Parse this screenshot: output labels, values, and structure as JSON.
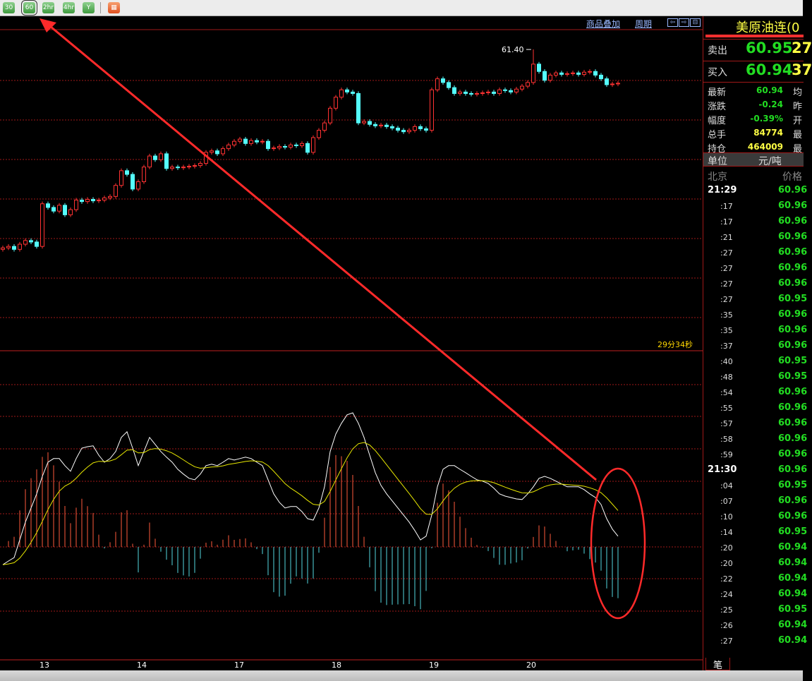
{
  "toolbar": {
    "buttons": [
      "30",
      "60",
      "2hr",
      "4hr",
      "Y"
    ],
    "selected": "60",
    "grid_icon": "grid-icon"
  },
  "header": {
    "overlay_link": "商品叠加",
    "period_link": "周期",
    "nav_icons": [
      "scroll-left-icon",
      "scroll-right-icon",
      "panel-toggle-icon"
    ]
  },
  "countdown": "29分34秒",
  "chart_data": [
    {
      "type": "candlestick",
      "high_label": "61.40",
      "high_value": 61.4,
      "x_ticks": [
        "13",
        "14",
        "17",
        "18",
        "19",
        "20"
      ],
      "colors": {
        "up": "#ff3232",
        "down": "#54fcfc",
        "grid": "#a01818"
      },
      "closes": [
        58.7,
        58.72,
        58.68,
        58.75,
        58.8,
        58.78,
        58.72,
        59.3,
        59.25,
        59.2,
        59.28,
        59.15,
        59.22,
        59.35,
        59.33,
        59.36,
        59.34,
        59.35,
        59.38,
        59.4,
        59.55,
        59.75,
        59.7,
        59.5,
        59.6,
        59.8,
        59.95,
        59.9,
        59.98,
        59.78,
        59.8,
        59.79,
        59.8,
        59.81,
        59.82,
        59.85,
        60.0,
        60.02,
        59.98,
        60.05,
        60.1,
        60.15,
        60.18,
        60.12,
        60.16,
        60.14,
        60.15,
        60.05,
        60.06,
        60.08,
        60.07,
        60.1,
        60.09,
        60.12,
        60.0,
        60.2,
        60.3,
        60.4,
        60.6,
        60.75,
        60.85,
        60.82,
        60.8,
        60.4,
        60.42,
        60.38,
        60.36,
        60.37,
        60.35,
        60.33,
        60.3,
        60.28,
        60.3,
        60.35,
        60.32,
        60.3,
        60.85,
        61.0,
        60.95,
        60.88,
        60.8,
        60.82,
        60.8,
        60.79,
        60.8,
        60.81,
        60.82,
        60.8,
        60.85,
        60.84,
        60.82,
        60.86,
        60.9,
        60.95,
        61.2,
        61.1,
        60.98,
        61.05,
        61.08,
        61.06,
        61.07,
        61.08,
        61.06,
        61.09,
        61.1,
        61.05,
        61.0,
        60.92,
        60.93,
        60.94
      ]
    },
    {
      "type": "macd",
      "colors": {
        "dif": "#ffffff",
        "dea": "#e8e800",
        "pos": "#ff5a3c",
        "neg": "#54d8e0"
      },
      "dif": [
        -0.063,
        -0.05,
        -0.038,
        0.025,
        0.088,
        0.138,
        0.188,
        0.25,
        0.3,
        0.313,
        0.313,
        0.288,
        0.268,
        0.313,
        0.35,
        0.355,
        0.358,
        0.325,
        0.3,
        0.313,
        0.338,
        0.388,
        0.408,
        0.35,
        0.288,
        0.338,
        0.388,
        0.363,
        0.338,
        0.318,
        0.3,
        0.275,
        0.258,
        0.243,
        0.238,
        0.258,
        0.288,
        0.293,
        0.288,
        0.3,
        0.313,
        0.308,
        0.313,
        0.318,
        0.313,
        0.3,
        0.288,
        0.238,
        0.188,
        0.158,
        0.138,
        0.143,
        0.143,
        0.125,
        0.1,
        0.095,
        0.138,
        0.213,
        0.338,
        0.4,
        0.438,
        0.468,
        0.475,
        0.438,
        0.388,
        0.325,
        0.263,
        0.218,
        0.188,
        0.163,
        0.138,
        0.113,
        0.088,
        0.058,
        0.025,
        0.038,
        0.113,
        0.213,
        0.275,
        0.288,
        0.288,
        0.275,
        0.263,
        0.25,
        0.238,
        0.233,
        0.225,
        0.208,
        0.188,
        0.18,
        0.175,
        0.17,
        0.168,
        0.188,
        0.213,
        0.243,
        0.25,
        0.243,
        0.233,
        0.223,
        0.213,
        0.213,
        0.213,
        0.203,
        0.188,
        0.175,
        0.15,
        0.1,
        0.063,
        0.038
      ]
    }
  ],
  "quote": {
    "title": "美原油连(0",
    "sell_label": "卖出",
    "sell_price": "60.95",
    "sell_vol": "27",
    "buy_label": "买入",
    "buy_price": "60.94",
    "buy_vol": "37",
    "rows": [
      {
        "label": "最新",
        "value": "60.94",
        "tail": "均"
      },
      {
        "label": "涨跌",
        "value": "-0.24",
        "tail": "昨"
      },
      {
        "label": "幅度",
        "value": "-0.39%",
        "tail": "开"
      },
      {
        "label": "总手",
        "value": "84774",
        "tail": "最"
      },
      {
        "label": "持仓",
        "value": "464009",
        "tail": "最"
      }
    ],
    "unit_label": "单位",
    "unit_value": "元/吨",
    "time_header": "北京",
    "price_header": "价格",
    "ticks": [
      [
        "21:29",
        "60.96"
      ],
      [
        ":17",
        "60.96"
      ],
      [
        ":17",
        "60.96"
      ],
      [
        ":21",
        "60.96"
      ],
      [
        ":27",
        "60.96"
      ],
      [
        ":27",
        "60.96"
      ],
      [
        ":27",
        "60.96"
      ],
      [
        ":27",
        "60.95"
      ],
      [
        ":35",
        "60.96"
      ],
      [
        ":35",
        "60.96"
      ],
      [
        ":37",
        "60.96"
      ],
      [
        ":40",
        "60.95"
      ],
      [
        ":48",
        "60.95"
      ],
      [
        ":54",
        "60.96"
      ],
      [
        ":55",
        "60.96"
      ],
      [
        ":57",
        "60.96"
      ],
      [
        ":58",
        "60.96"
      ],
      [
        ":59",
        "60.96"
      ],
      [
        "21:30",
        "60.96"
      ],
      [
        ":04",
        "60.95"
      ],
      [
        ":07",
        "60.96"
      ],
      [
        ":10",
        "60.96"
      ],
      [
        ":14",
        "60.95"
      ],
      [
        ":20",
        "60.94"
      ],
      [
        ":20",
        "60.94"
      ],
      [
        ":22",
        "60.94"
      ],
      [
        ":24",
        "60.94"
      ],
      [
        ":25",
        "60.95"
      ],
      [
        ":26",
        "60.94"
      ],
      [
        ":27",
        "60.94"
      ]
    ],
    "tab": "笔"
  }
}
